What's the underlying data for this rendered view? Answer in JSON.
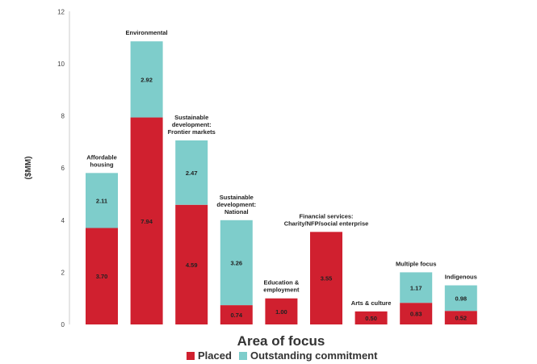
{
  "chart_data": {
    "type": "bar",
    "stacked": true,
    "xlabel": "Area of focus",
    "ylabel": "($MM)",
    "ylim": [
      0,
      12
    ],
    "yticks": [
      0,
      2,
      4,
      6,
      8,
      10,
      12
    ],
    "grid": false,
    "legend_position": "bottom",
    "categories": [
      [
        "Affordable",
        "housing"
      ],
      [
        "Environmental"
      ],
      [
        "Sustainable",
        "development:",
        "Frontier markets"
      ],
      [
        "Sustainable",
        "development:",
        "National"
      ],
      [
        "Education &",
        "employment"
      ],
      [
        "Financial services:",
        "Charity/NFP/social enterprise"
      ],
      [
        "Arts & culture"
      ],
      [
        "Multiple focus"
      ],
      [
        "Indigenous"
      ]
    ],
    "series": [
      {
        "name": "Placed",
        "color": "#d0202f",
        "values": [
          3.7,
          7.94,
          4.59,
          0.74,
          1.0,
          3.55,
          0.5,
          0.83,
          0.52
        ],
        "labels": [
          "3.70",
          "7.94",
          "4.59",
          "0.74",
          "1.00",
          "3.55",
          "0.50",
          "0.83",
          "0.52"
        ]
      },
      {
        "name": "Outstanding commitment",
        "color": "#7ecdcb",
        "values": [
          2.11,
          2.92,
          2.47,
          3.26,
          0,
          0,
          0,
          1.17,
          0.98
        ],
        "labels": [
          "2.11",
          "2.92",
          "2.47",
          "3.26",
          "",
          "",
          "",
          "1.17",
          "0.98"
        ]
      }
    ]
  }
}
